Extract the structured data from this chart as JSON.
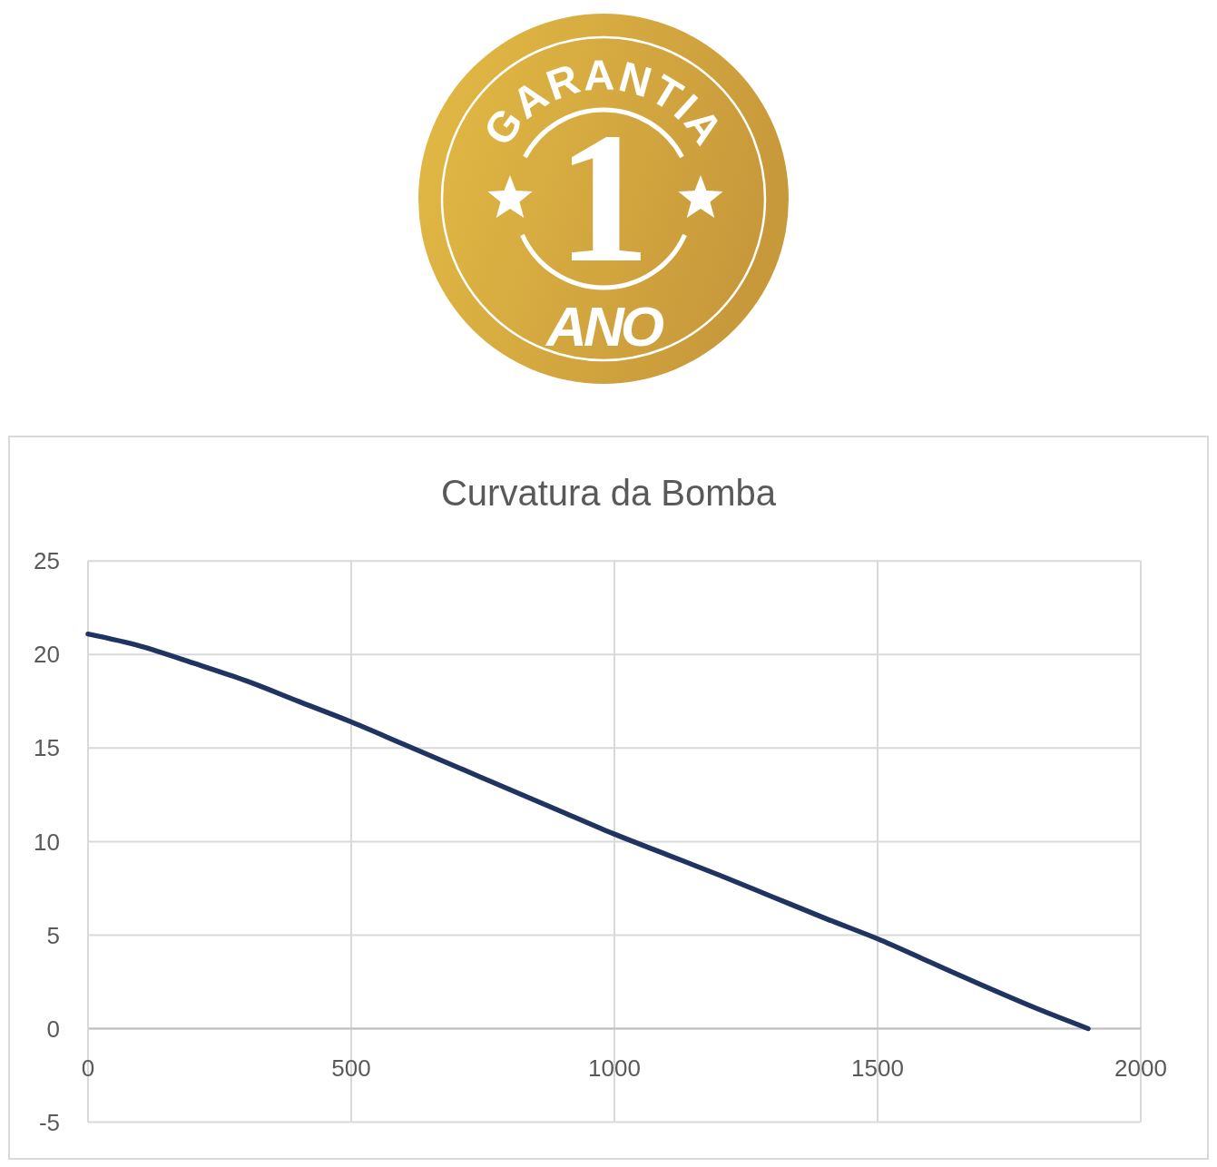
{
  "chart_data": {
    "type": "line",
    "title": "Curvatura da Bomba",
    "x": [
      0,
      100,
      200,
      300,
      400,
      500,
      600,
      700,
      800,
      900,
      1000,
      1100,
      1200,
      1300,
      1400,
      1500,
      1600,
      1700,
      1800,
      1900
    ],
    "values": [
      21.1,
      20.45,
      19.55,
      18.6,
      17.5,
      16.4,
      15.2,
      14.0,
      12.8,
      11.6,
      10.4,
      9.3,
      8.2,
      7.05,
      5.9,
      4.8,
      3.55,
      2.3,
      1.1,
      0
    ],
    "color": "#1f3460",
    "xlim": [
      0,
      2000
    ],
    "xticks": [
      0,
      500,
      1000,
      1500,
      2000
    ],
    "ylim": [
      -5,
      25
    ],
    "yticks": [
      -5,
      0,
      5,
      10,
      15,
      20,
      25
    ],
    "grid": true,
    "line_style": "solid",
    "annotations": [
      "GARANTIA",
      "1",
      "ANO"
    ]
  }
}
